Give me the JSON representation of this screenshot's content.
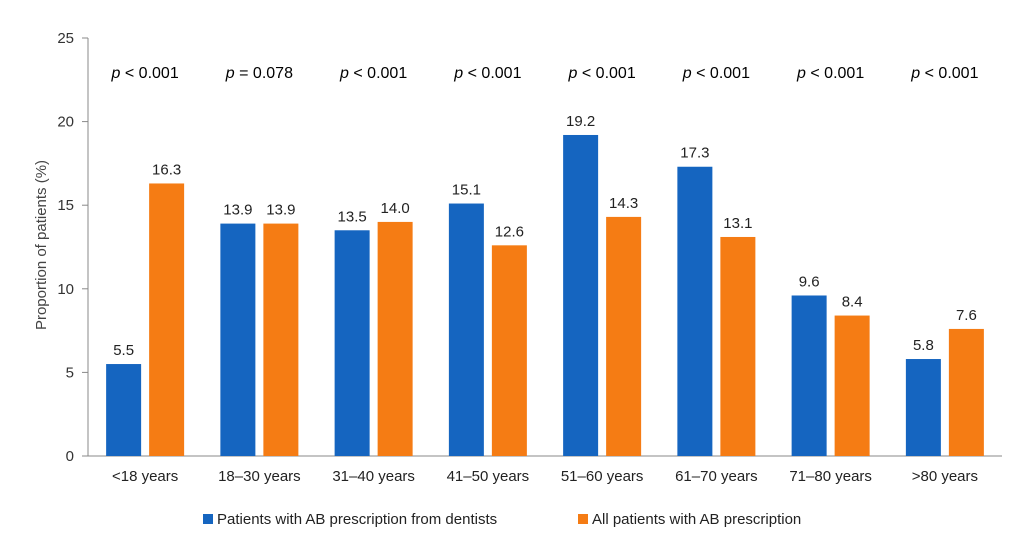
{
  "chart_data": {
    "type": "bar",
    "ylabel": "Proportion of patients (%)",
    "xlabel": "",
    "title": "",
    "ylim": [
      0,
      25
    ],
    "yticks": [
      0,
      5,
      10,
      15,
      20,
      25
    ],
    "categories": [
      "<18 years",
      "18–30 years",
      "31–40 years",
      "41–50 years",
      "51–60 years",
      "61–70 years",
      "71–80 years",
      ">80 years"
    ],
    "series": [
      {
        "name": "Patients with AB prescription from dentists",
        "color": "#1565C0",
        "values": [
          5.5,
          13.9,
          13.5,
          15.1,
          19.2,
          17.3,
          9.6,
          5.8
        ],
        "labels": [
          "5.5",
          "13.9",
          "13.5",
          "15.1",
          "19.2",
          "17.3",
          "9.6",
          "5.8"
        ]
      },
      {
        "name": "All patients with AB prescription",
        "color": "#F57C14",
        "values": [
          16.3,
          13.9,
          14.0,
          12.6,
          14.3,
          13.1,
          8.4,
          7.6
        ],
        "labels": [
          "16.3",
          "13.9",
          "14.0",
          "12.6",
          "14.3",
          "13.1",
          "8.4",
          "7.6"
        ]
      }
    ],
    "annotations": [
      {
        "p": "p",
        "rest": " < 0.001"
      },
      {
        "p": "p",
        "rest": " = 0.078"
      },
      {
        "p": "p",
        "rest": " < 0.001"
      },
      {
        "p": "p",
        "rest": " < 0.001"
      },
      {
        "p": "p",
        "rest": " < 0.001"
      },
      {
        "p": "p",
        "rest": " < 0.001"
      },
      {
        "p": "p",
        "rest": " < 0.001"
      },
      {
        "p": "p",
        "rest": " < 0.001"
      }
    ],
    "grid": false,
    "legend_position": "bottom"
  }
}
